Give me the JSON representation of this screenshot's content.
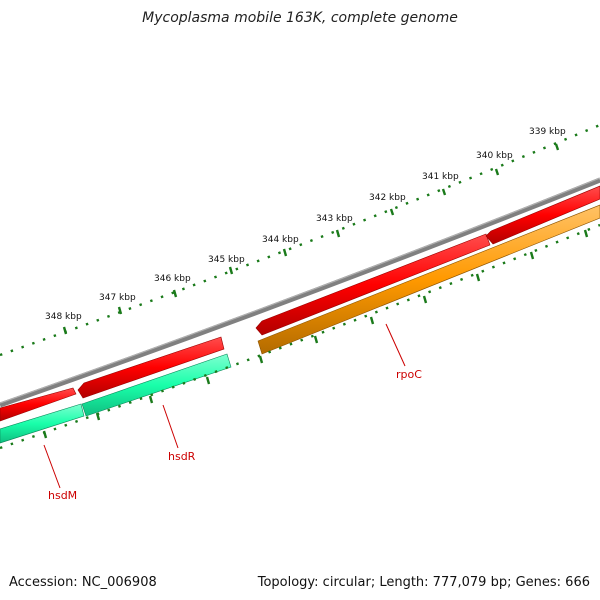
{
  "title": "Mycoplasma mobile 163K, complete genome",
  "footer": {
    "accession": "Accession: NC_006908",
    "summary": "Topology: circular; Length: 777,079 bp; Genes: 666"
  },
  "colors": {
    "backbone": "#808080",
    "cds_forward": "#ff0000",
    "hsdM": "#19ffaa",
    "hsdR": "#19ffaa",
    "rpoC": "#ff9900",
    "ticks": "#1a7a1a",
    "label": "#cc0000"
  },
  "kbp_labels": [
    {
      "text": "339 kbp",
      "kbp": 339
    },
    {
      "text": "340 kbp",
      "kbp": 340
    },
    {
      "text": "341 kbp",
      "kbp": 341
    },
    {
      "text": "342 kbp",
      "kbp": 342
    },
    {
      "text": "343 kbp",
      "kbp": 343
    },
    {
      "text": "344 kbp",
      "kbp": 344
    },
    {
      "text": "345 kbp",
      "kbp": 345
    },
    {
      "text": "346 kbp",
      "kbp": 346
    },
    {
      "text": "347 kbp",
      "kbp": 347
    },
    {
      "text": "348 kbp",
      "kbp": 348
    }
  ],
  "genes": [
    {
      "name": "hsdM",
      "strand": "reverse"
    },
    {
      "name": "hsdR",
      "strand": "reverse"
    },
    {
      "name": "rpoC",
      "strand": "reverse"
    }
  ]
}
